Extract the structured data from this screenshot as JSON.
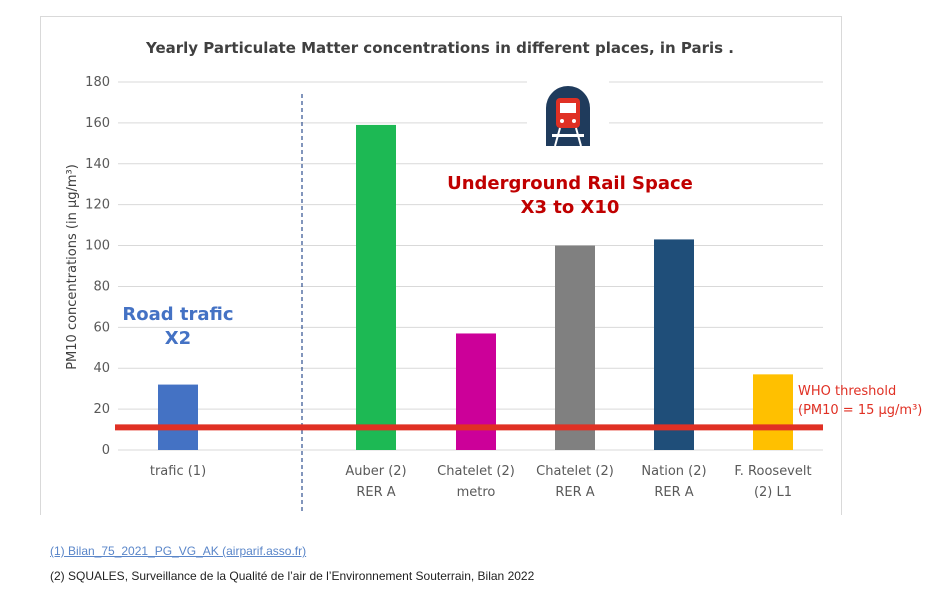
{
  "chart_data": {
    "type": "bar",
    "title": "Yearly Particulate Matter concentrations  in different places, in Paris .",
    "ylabel": "PM10 concentrations (in µg/m³)",
    "xlabel": "",
    "ylim": [
      0,
      180
    ],
    "yticks": [
      0,
      20,
      40,
      60,
      80,
      100,
      120,
      140,
      160,
      180
    ],
    "grid": true,
    "categories": [
      [
        "trafic (1)"
      ],
      [
        "Auber (2)",
        "RER A"
      ],
      [
        "Chatelet (2)",
        "metro"
      ],
      [
        "Chatelet (2)",
        "RER A"
      ],
      [
        "Nation (2)",
        "RER A"
      ],
      [
        "F. Roosevelt",
        "(2) L1"
      ]
    ],
    "values": [
      32,
      159,
      57,
      100,
      103,
      37
    ],
    "colors": [
      "#4472c4",
      "#1db954",
      "#cc0099",
      "#808080",
      "#1f4e79",
      "#ffc000"
    ],
    "threshold": {
      "value": 15,
      "color": "#e03024",
      "label_line1": "WHO threshold",
      "label_line2": "(PM10 = 15 µg/m³)"
    },
    "annotations": {
      "road_line1": "Road trafic",
      "road_line2": "X2",
      "road_color": "#4472c4",
      "rail_line1": "Underground Rail Space",
      "rail_line2": "X3 to X10",
      "rail_color": "#c00000"
    },
    "icon": "metro-tunnel-icon"
  },
  "footnotes": {
    "note1": "(1) Bilan_75_2021_PG_VG_AK (airparif.asso.fr)",
    "note2": "(2) SQUALES, Surveillance de la Qualité de l’air de l’Environnement Souterrain, Bilan 2022"
  }
}
